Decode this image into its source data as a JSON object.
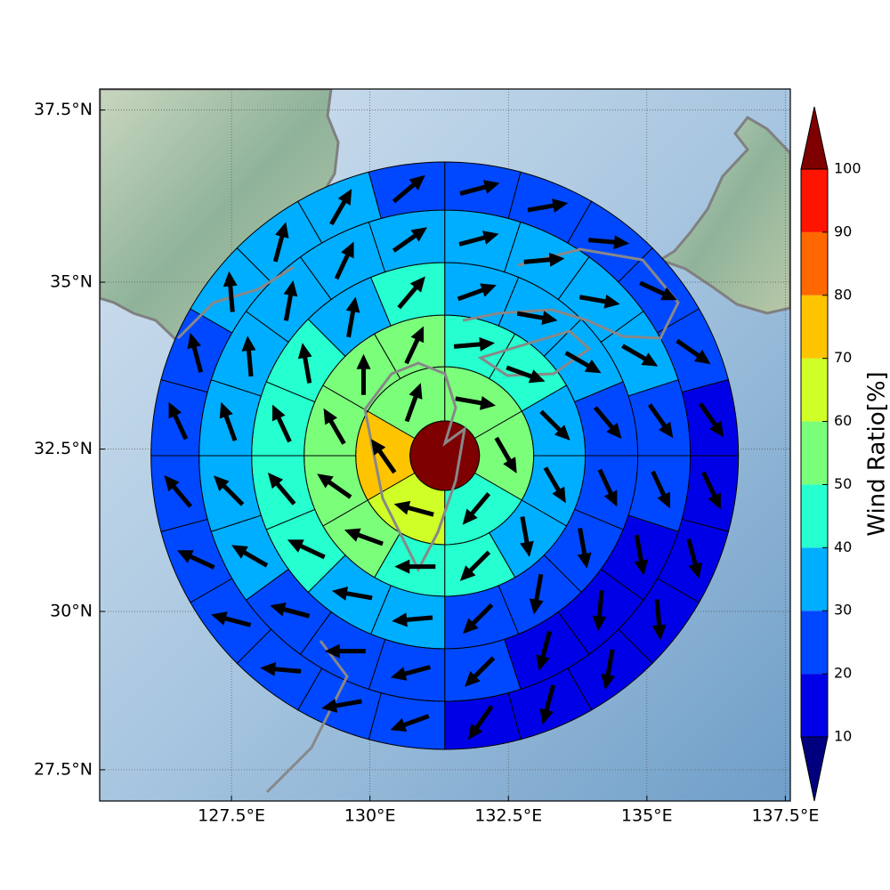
{
  "chart_data": {
    "type": "polar-sector-map",
    "projection": "mercator",
    "xlim": [
      125.12,
      137.59
    ],
    "ylim": [
      27.0,
      37.8
    ],
    "xticks": [
      {
        "value": 127.5,
        "label": "127.5°E"
      },
      {
        "value": 130,
        "label": "130°E"
      },
      {
        "value": 132.5,
        "label": "132.5°E"
      },
      {
        "value": 135,
        "label": "135°E"
      },
      {
        "value": 137.5,
        "label": "137.5°E"
      }
    ],
    "yticks": [
      {
        "value": 27.5,
        "label": "27.5°N"
      },
      {
        "value": 30,
        "label": "30°N"
      },
      {
        "value": 32.5,
        "label": "32.5°N"
      },
      {
        "value": 35,
        "label": "35°N"
      },
      {
        "value": 37.5,
        "label": "37.5°N"
      }
    ],
    "grid": true,
    "center": {
      "lon": 131.35,
      "lat": 32.4,
      "value": 105
    },
    "rings": [
      {
        "values": [
          55,
          55,
          45,
          65,
          75,
          55
        ],
        "directions": [
          100,
          150,
          220,
          285,
          325,
          20
        ]
      },
      {
        "values": [
          45,
          45,
          35,
          35,
          35,
          45,
          45,
          55,
          55,
          55,
          55,
          55
        ],
        "directions": [
          85,
          110,
          135,
          150,
          170,
          225,
          270,
          290,
          305,
          330,
          0,
          25
        ]
      },
      {
        "values": [
          35,
          35,
          35,
          25,
          25,
          25,
          25,
          25,
          35,
          35,
          45,
          45,
          45,
          45,
          35,
          45
        ],
        "directions": [
          70,
          100,
          120,
          140,
          155,
          170,
          190,
          225,
          265,
          280,
          295,
          320,
          335,
          350,
          10,
          40
        ]
      },
      {
        "values": [
          35,
          35,
          35,
          35,
          25,
          25,
          15,
          15,
          15,
          25,
          25,
          25,
          25,
          35,
          35,
          35,
          35,
          35,
          35,
          35
        ],
        "directions": [
          75,
          85,
          100,
          120,
          145,
          155,
          170,
          185,
          195,
          225,
          255,
          270,
          285,
          300,
          315,
          340,
          355,
          10,
          25,
          55
        ]
      },
      {
        "values": [
          25,
          25,
          25,
          25,
          25,
          15,
          15,
          15,
          15,
          15,
          15,
          15,
          25,
          25,
          25,
          25,
          25,
          25,
          25,
          25,
          35,
          35,
          35,
          25
        ],
        "directions": [
          75,
          80,
          95,
          115,
          125,
          145,
          155,
          165,
          175,
          190,
          195,
          215,
          250,
          260,
          275,
          285,
          295,
          320,
          335,
          345,
          355,
          15,
          30,
          50
        ]
      }
    ],
    "arrow_color": "#000000",
    "colorbar": {
      "label": "Wind Ratio[%]",
      "levels": [
        10,
        20,
        30,
        40,
        50,
        60,
        70,
        80,
        90,
        100
      ],
      "colors": [
        "#0000e6",
        "#0048ff",
        "#00aeff",
        "#26ffcf",
        "#7bff7b",
        "#cfff26",
        "#ffc400",
        "#ff6800",
        "#ff1400"
      ],
      "under": "#00007f",
      "over": "#7f0000"
    }
  }
}
